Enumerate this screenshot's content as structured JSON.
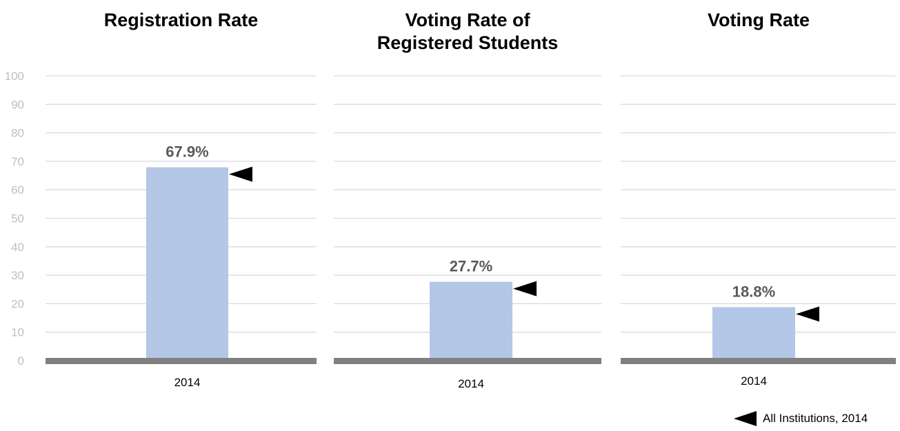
{
  "chart_data": [
    {
      "type": "bar",
      "title": "Registration Rate",
      "categories": [
        "2014"
      ],
      "values": [
        67.9
      ],
      "data_labels": [
        "67.9%"
      ],
      "benchmark": 67.9,
      "ylim": [
        0,
        100
      ],
      "yticks": [
        "0",
        "10",
        "20",
        "30",
        "40",
        "50",
        "60",
        "70",
        "80",
        "90",
        "100"
      ],
      "grid": true
    },
    {
      "type": "bar",
      "title_lines": [
        "Voting Rate of",
        "Registered Students"
      ],
      "categories": [
        "2014"
      ],
      "values": [
        27.7
      ],
      "data_labels": [
        "27.7%"
      ],
      "benchmark": 27.7,
      "ylim": [
        0,
        100
      ],
      "grid": true
    },
    {
      "type": "bar",
      "title": "Voting Rate",
      "categories": [
        "2014"
      ],
      "values": [
        18.8
      ],
      "data_labels": [
        "18.8%"
      ],
      "benchmark": 18.8,
      "ylim": [
        0,
        100
      ],
      "grid": true
    }
  ],
  "legend": {
    "label": "All Institutions, 2014",
    "marker_icon": "left-pointing-triangle-icon",
    "placement": "bottom-right"
  },
  "colors": {
    "bar": "#b4c7e7",
    "gridline": "#d9d9d9",
    "baseline": "#808080",
    "tick_label": "#bfbfbf",
    "data_label": "#595959",
    "marker": "#000000"
  }
}
